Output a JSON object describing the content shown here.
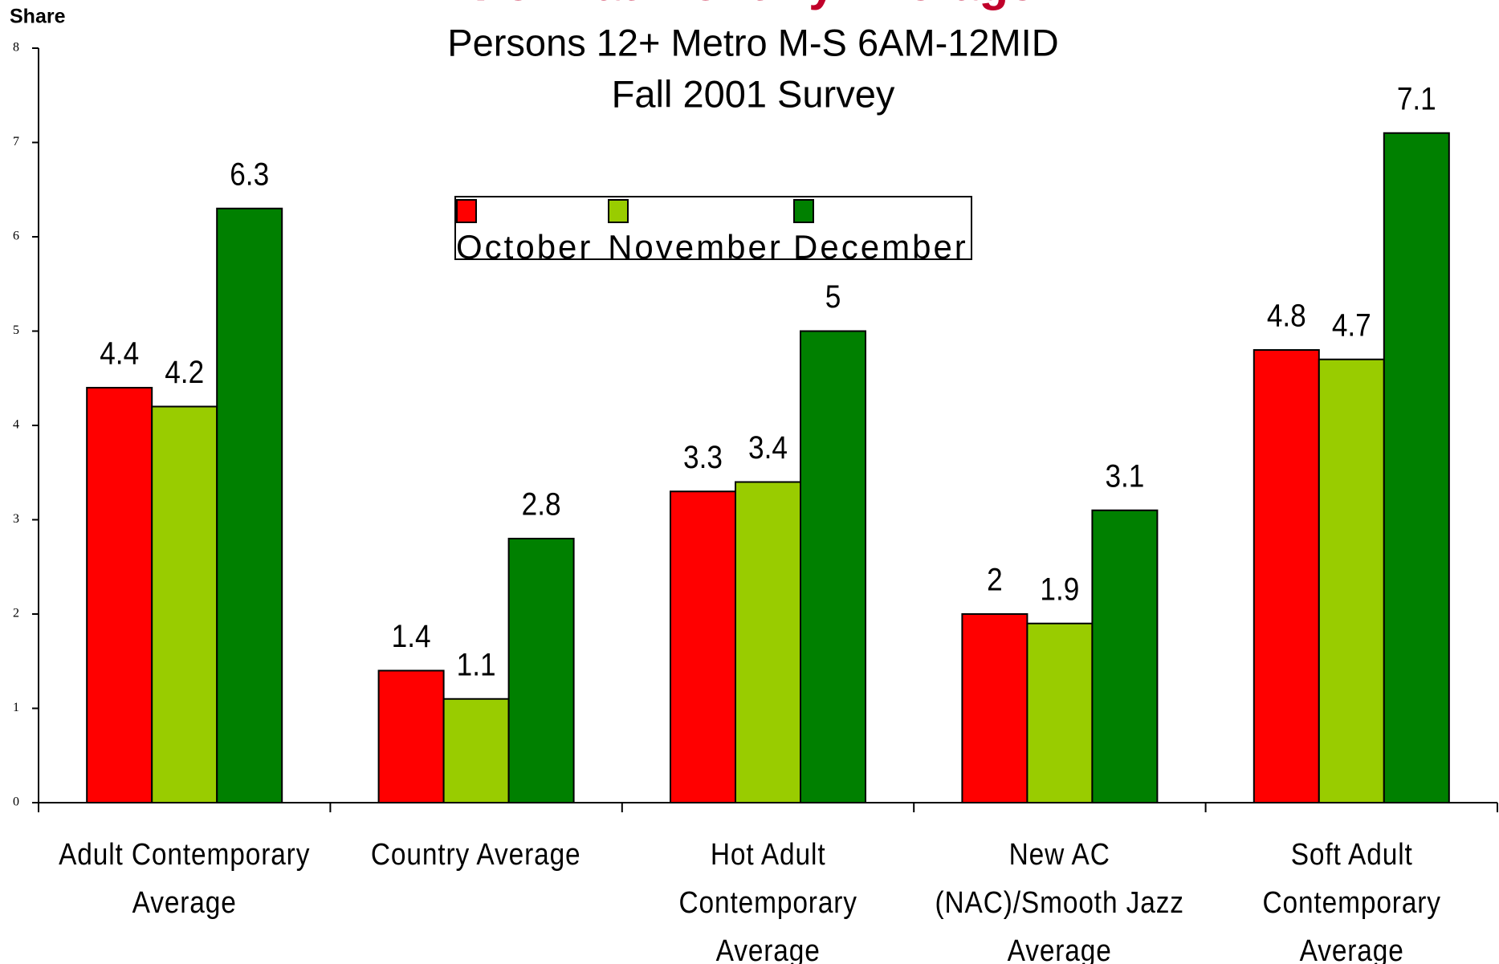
{
  "chart_data": {
    "type": "bar",
    "title": "Format Monthly Average",
    "subtitle": [
      "Persons 12+ Metro M-S 6AM-12MID",
      "Fall 2001 Survey"
    ],
    "y_label": "Share",
    "categories": [
      "Adult Contemporary Average",
      "Country Average",
      "Hot Adult Contemporary Average",
      "New AC (NAC)/Smooth Jazz Average",
      "Soft Adult Contemporary Average"
    ],
    "series": [
      {
        "name": "October",
        "color": "#ff0000",
        "values": [
          4.4,
          1.4,
          3.3,
          2,
          4.8
        ]
      },
      {
        "name": "November",
        "color": "#99cc00",
        "values": [
          4.2,
          1.1,
          3.4,
          1.9,
          4.7
        ]
      },
      {
        "name": "December",
        "color": "#008000",
        "values": [
          6.3,
          2.8,
          5,
          3.1,
          7.1
        ]
      }
    ],
    "ylim": [
      0,
      8
    ],
    "yticks": [
      0,
      1,
      2,
      3,
      4,
      5,
      6,
      7,
      8
    ],
    "grid": false,
    "legend": "top"
  }
}
